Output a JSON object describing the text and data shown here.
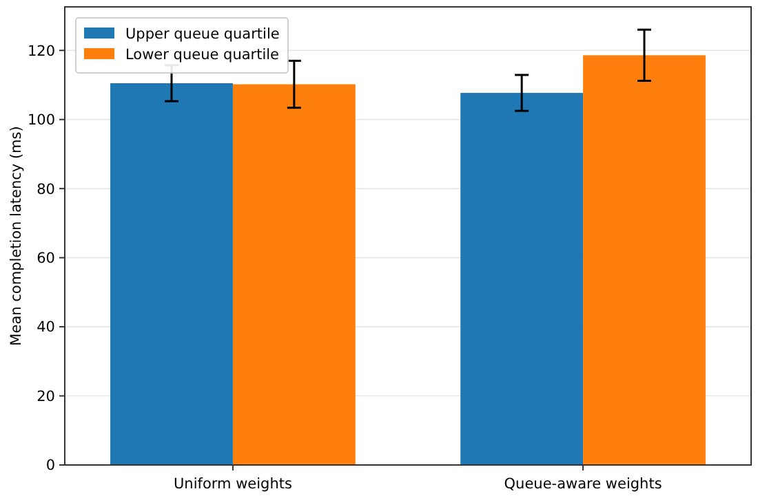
{
  "chart_data": {
    "type": "bar",
    "ylabel": "Mean completion latency (ms)",
    "categories": [
      "Uniform weights",
      "Queue-aware weights"
    ],
    "series": [
      {
        "name": "Upper queue quartile",
        "color": "#1f77b4",
        "values": [
          110.5,
          107.7
        ],
        "errors": [
          5.2,
          5.2
        ]
      },
      {
        "name": "Lower queue quartile",
        "color": "#ff7f0e",
        "values": [
          110.2,
          118.6
        ],
        "errors": [
          6.8,
          7.4
        ]
      }
    ],
    "ylim": [
      0,
      132.6
    ],
    "yticks": [
      0,
      20,
      40,
      60,
      80,
      100,
      120
    ],
    "grid": "y",
    "legend": "top left"
  }
}
